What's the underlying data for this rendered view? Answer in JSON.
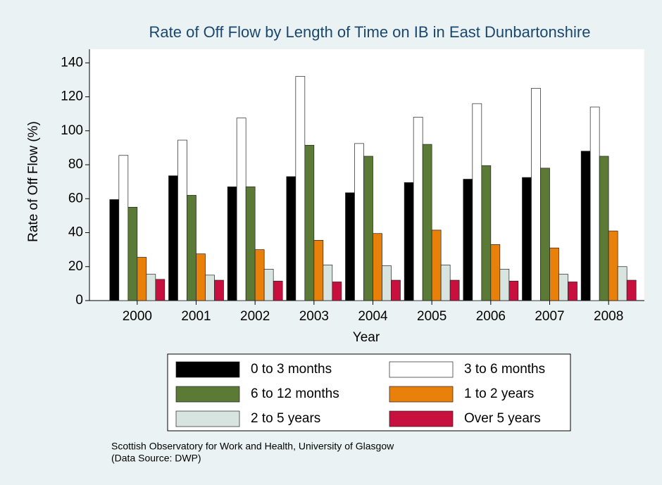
{
  "chart_data": {
    "type": "bar",
    "title": "Rate of Off Flow by Length of Time on IB in East Dunbartonshire",
    "ylabel": "Rate of Off Flow (%)",
    "xlabel": "Year",
    "categories": [
      "2000",
      "2001",
      "2002",
      "2003",
      "2004",
      "2005",
      "2006",
      "2007",
      "2008"
    ],
    "series": [
      {
        "name": "0 to 3 months",
        "color": "#000000",
        "values": [
          59.5,
          73.5,
          67,
          73,
          63.5,
          69.5,
          71.5,
          72.5,
          88
        ]
      },
      {
        "name": "3 to 6 months",
        "color": "#ffffff",
        "values": [
          85.5,
          94.5,
          107.5,
          132,
          92.5,
          108,
          116,
          125,
          114
        ]
      },
      {
        "name": "6 to 12 months",
        "color": "#5a7a35",
        "values": [
          55,
          62,
          67,
          91.5,
          85,
          92,
          79.5,
          78,
          85
        ]
      },
      {
        "name": "1 to 2 years",
        "color": "#e8800a",
        "values": [
          25.5,
          27.5,
          30,
          35.5,
          39.5,
          41.5,
          33,
          31,
          41
        ]
      },
      {
        "name": "2 to 5 years",
        "color": "#d7e4e0",
        "values": [
          15.5,
          15,
          18.5,
          21,
          20.5,
          21,
          18.5,
          15.5,
          20
        ]
      },
      {
        "name": "Over 5 years",
        "color": "#c8103f",
        "values": [
          12.5,
          12,
          11.5,
          11,
          12,
          12,
          11.5,
          11,
          12
        ]
      }
    ],
    "ylim": [
      0,
      148
    ],
    "yticks": [
      0,
      20,
      40,
      60,
      80,
      100,
      120,
      140
    ],
    "grid": false,
    "legend": "bottom",
    "notes": [
      "Scottish Observatory for Work and Health, University of Glasgow",
      "(Data Source: DWP)"
    ]
  }
}
